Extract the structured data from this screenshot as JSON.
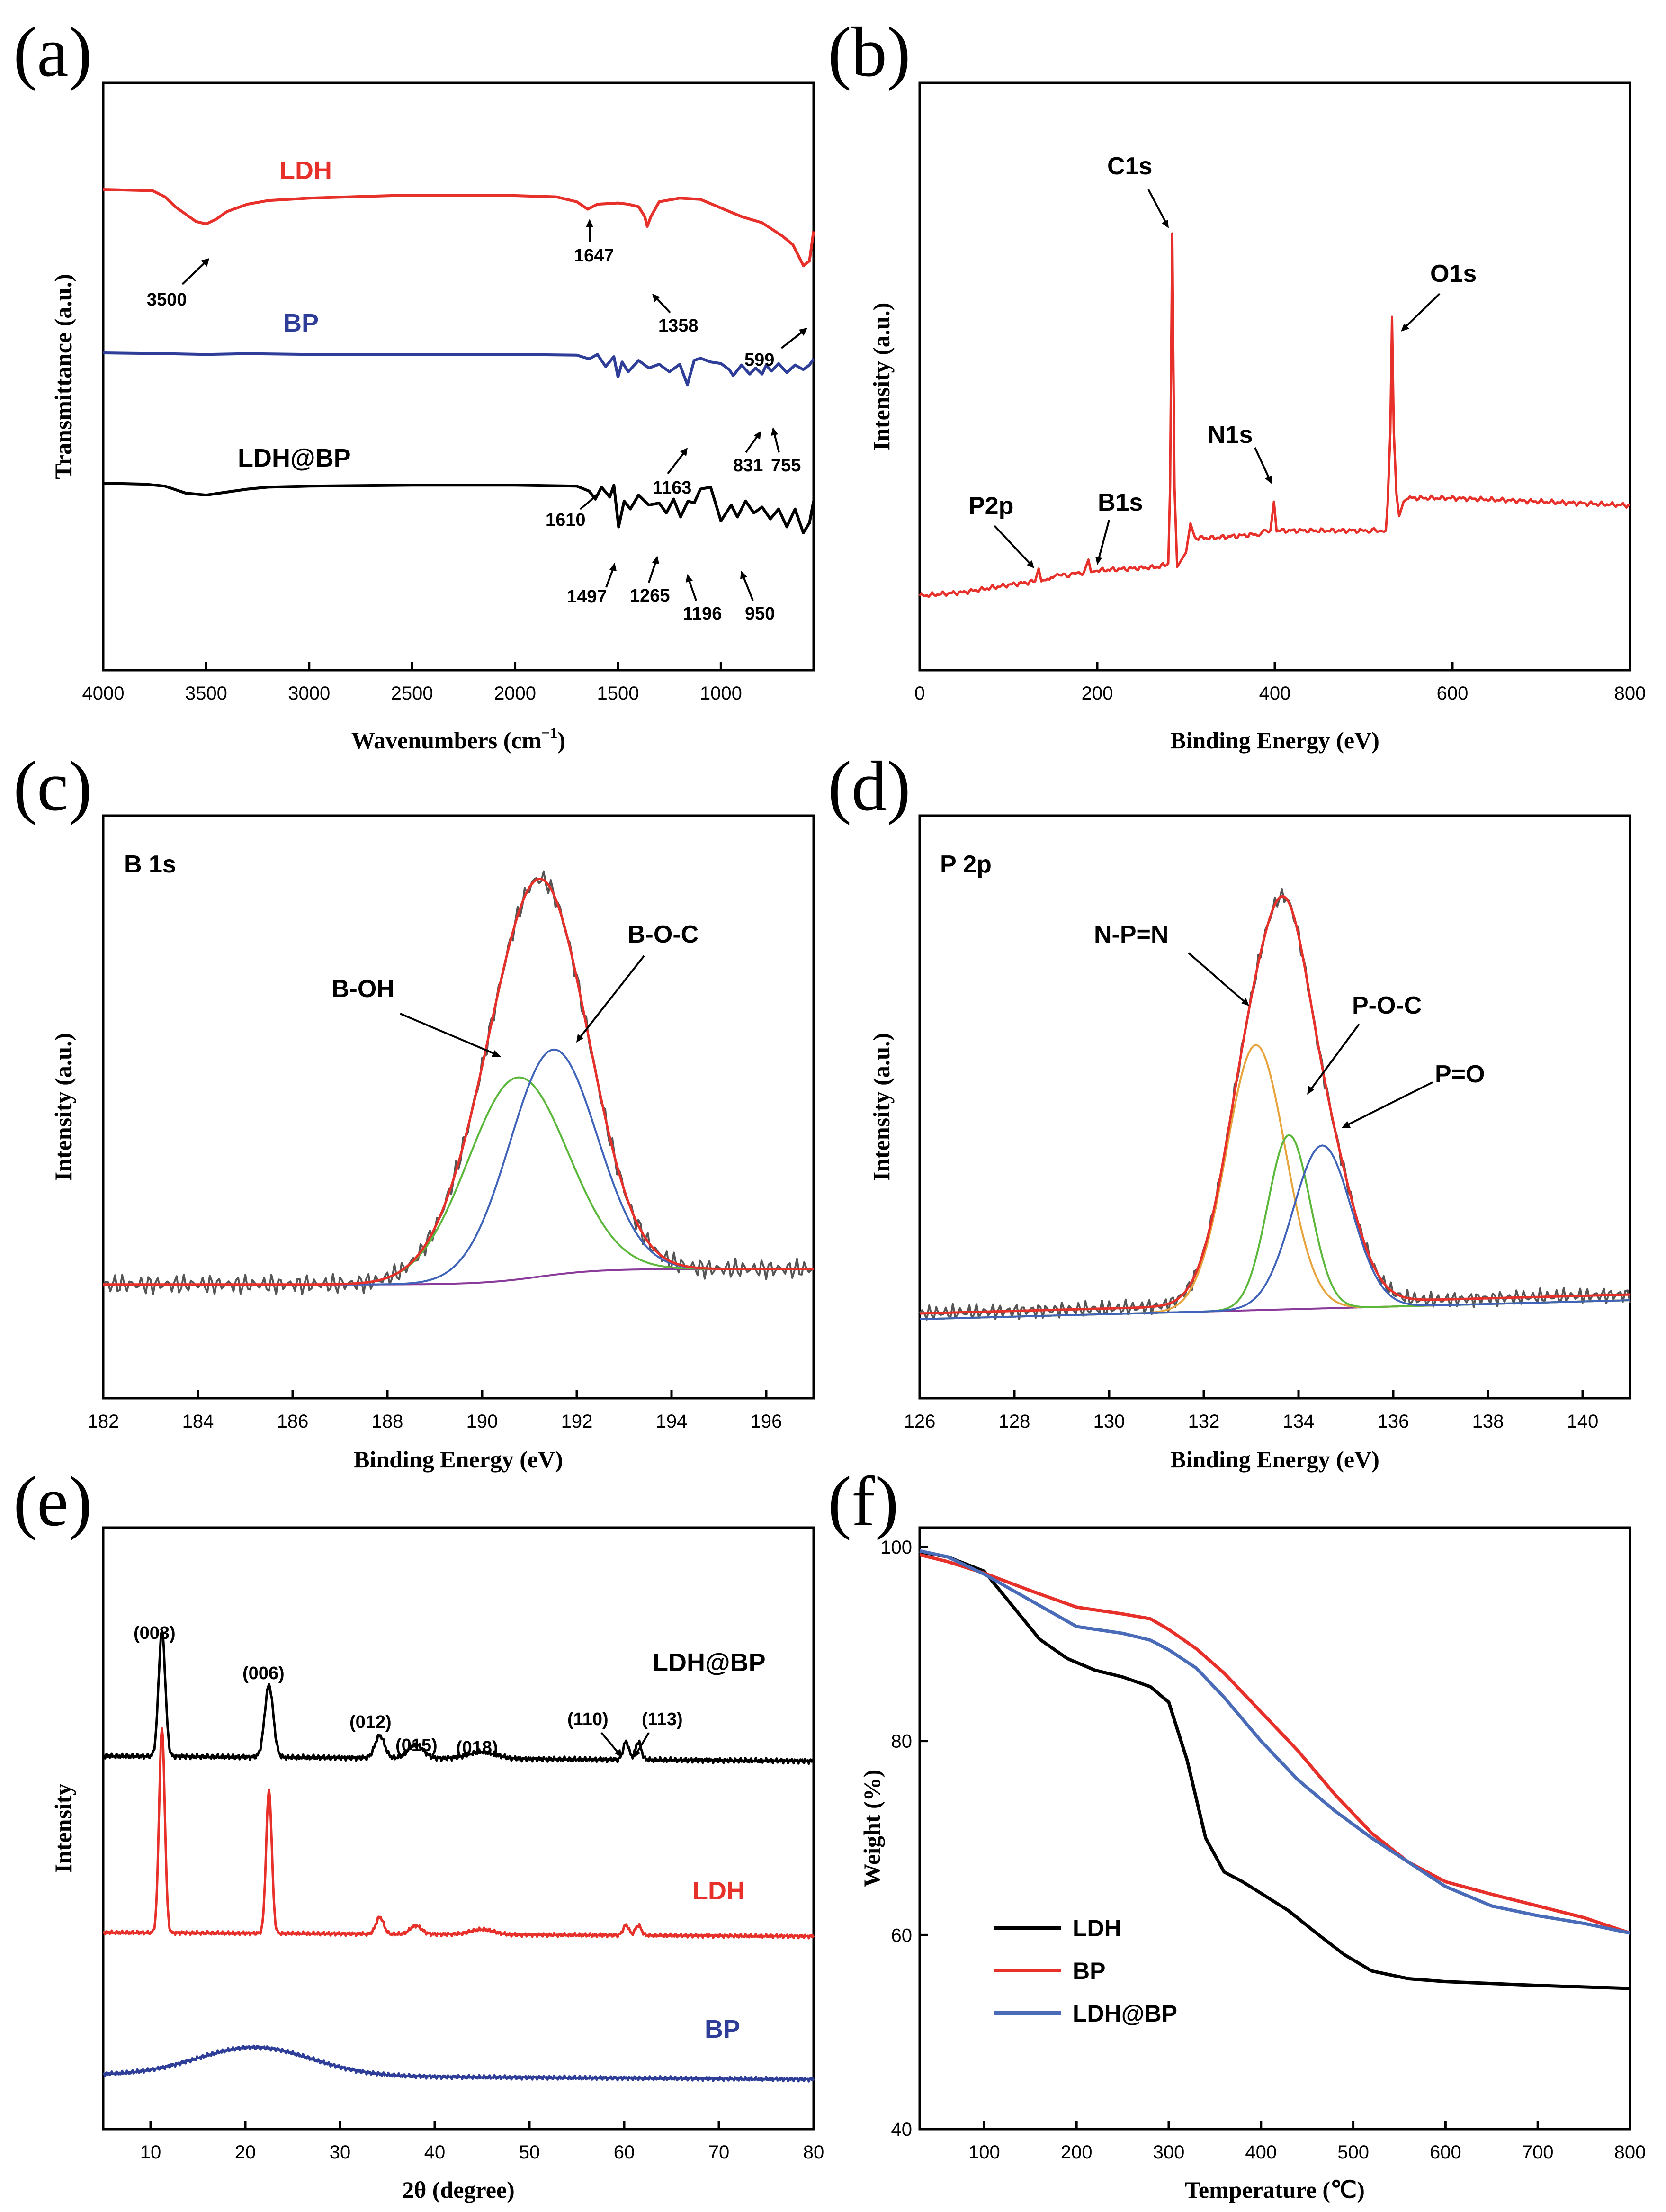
{
  "colors": {
    "red": "#e8302a",
    "blue": "#2e3d98",
    "black": "#000000",
    "green": "#5cb83a",
    "peakblue": "#3f63b8",
    "orange": "#e8a43c",
    "purple": "#8a3a99",
    "raw": "#555555",
    "tgaBlue": "#4a6bb8"
  },
  "chart_data": [
    {
      "panel": "(a)",
      "type": "line",
      "xlabel": "Wavenumbers (cm",
      "xlabel_sup": "−1",
      "xlabel_end": ")",
      "ylabel": "Transmittance (a.u.)",
      "xlim": [
        4000,
        550
      ],
      "xticks": [
        4000,
        3500,
        3000,
        2500,
        2000,
        1500,
        1000
      ],
      "series": [
        {
          "name": "LDH",
          "color": "red",
          "x": [
            4000,
            3760,
            3700,
            3650,
            3600,
            3550,
            3500,
            3450,
            3400,
            3300,
            3200,
            3000,
            2800,
            2600,
            2400,
            2200,
            2000,
            1800,
            1700,
            1647,
            1600,
            1500,
            1450,
            1400,
            1370,
            1358,
            1340,
            1300,
            1200,
            1100,
            1000,
            900,
            800,
            700,
            650,
            620,
            599,
            570,
            550
          ],
          "y": [
            100,
            99,
            94,
            86,
            80,
            74,
            72,
            76,
            82,
            88,
            91,
            93,
            94,
            95,
            95,
            95,
            95,
            94,
            90,
            84,
            88,
            89,
            88,
            86,
            78,
            70,
            78,
            90,
            93,
            92,
            85,
            78,
            73,
            62,
            55,
            45,
            38,
            42,
            66
          ]
        },
        {
          "name": "BP",
          "color": "blue",
          "x": [
            4000,
            3700,
            3500,
            3300,
            3000,
            2500,
            2000,
            1700,
            1640,
            1600,
            1560,
            1520,
            1500,
            1480,
            1450,
            1400,
            1350,
            1300,
            1250,
            1200,
            1163,
            1130,
            1100,
            1050,
            1000,
            960,
            940,
            900,
            860,
            831,
            800,
            780,
            755,
            720,
            680,
            640,
            600,
            570,
            550
          ],
          "y": [
            100,
            99,
            98,
            99,
            98,
            98,
            98,
            97,
            92,
            98,
            82,
            95,
            68,
            88,
            75,
            90,
            80,
            85,
            75,
            85,
            58,
            90,
            93,
            88,
            86,
            78,
            70,
            84,
            72,
            80,
            72,
            84,
            76,
            86,
            74,
            84,
            78,
            84,
            92
          ]
        },
        {
          "name": "LDH@BP",
          "color": "black",
          "x": [
            4000,
            3800,
            3700,
            3600,
            3500,
            3400,
            3300,
            3200,
            3000,
            2500,
            2000,
            1700,
            1640,
            1610,
            1580,
            1540,
            1520,
            1497,
            1470,
            1440,
            1400,
            1350,
            1300,
            1265,
            1230,
            1196,
            1160,
            1130,
            1100,
            1050,
            1000,
            950,
            920,
            880,
            840,
            800,
            760,
            720,
            680,
            640,
            600,
            570,
            550
          ],
          "y": [
            100,
            99,
            97,
            90,
            88,
            91,
            94,
            96,
            97,
            98,
            98,
            97,
            92,
            84,
            96,
            86,
            98,
            56,
            82,
            74,
            88,
            78,
            80,
            70,
            84,
            66,
            82,
            80,
            94,
            96,
            62,
            78,
            66,
            82,
            70,
            76,
            64,
            74,
            56,
            74,
            50,
            60,
            82
          ]
        }
      ],
      "peak_labels": [
        {
          "text": "3500",
          "series": "LDH"
        },
        {
          "text": "1647",
          "series": "LDH"
        },
        {
          "text": "1358",
          "series": "LDH"
        },
        {
          "text": "599",
          "series": "LDH"
        },
        {
          "text": "1163",
          "series": "BP"
        },
        {
          "text": "831",
          "series": "BP"
        },
        {
          "text": "755",
          "series": "BP"
        },
        {
          "text": "1610",
          "series": "LDH@BP"
        },
        {
          "text": "1497",
          "series": "LDH@BP"
        },
        {
          "text": "1265",
          "series": "LDH@BP"
        },
        {
          "text": "1196",
          "series": "LDH@BP"
        },
        {
          "text": "950",
          "series": "LDH@BP"
        }
      ]
    },
    {
      "panel": "(b)",
      "type": "line",
      "xlabel": "Binding Energy (eV)",
      "ylabel": "Intensity (a.u.)",
      "xlim": [
        0,
        800
      ],
      "xticks": [
        0,
        200,
        400,
        600,
        800
      ],
      "series": [
        {
          "name": "XPS survey",
          "color": "red",
          "x": [
            0,
            50,
            100,
            130,
            134,
            137,
            140,
            150,
            155,
            160,
            185,
            190,
            193,
            200,
            270,
            280,
            282,
            284.5,
            287,
            290,
            295,
            300,
            305,
            310,
            330,
            380,
            395,
            399,
            402,
            410,
            450,
            500,
            525,
            527,
            530,
            532,
            534,
            537,
            540,
            545,
            550,
            560,
            600,
            700,
            800
          ],
          "y": [
            0,
            1,
            3,
            4,
            7.5,
            4,
            4.5,
            5,
            6,
            5.5,
            6.5,
            10,
            6.5,
            7,
            8,
            9,
            30,
            100,
            30,
            8,
            10,
            12,
            20,
            16,
            16,
            17,
            18,
            26,
            18,
            18,
            18,
            18,
            18,
            25,
            45,
            77,
            45,
            28,
            22,
            26,
            27,
            27,
            27,
            26,
            25
          ]
        }
      ],
      "peak_labels": [
        {
          "text": "C1s"
        },
        {
          "text": "O1s"
        },
        {
          "text": "N1s"
        },
        {
          "text": "B1s"
        },
        {
          "text": "P2p"
        }
      ]
    },
    {
      "panel": "(c)",
      "type": "line",
      "title": "B 1s",
      "xlabel": "Binding Energy (eV)",
      "ylabel": "Intensity (a.u.)",
      "xlim": [
        182,
        197
      ],
      "xticks": [
        182,
        184,
        186,
        188,
        190,
        192,
        194,
        196
      ],
      "components": [
        {
          "name": "B-OH",
          "center": 190.75,
          "sigma": 1.05,
          "amp": 52
        },
        {
          "name": "B-O-C",
          "center": 191.5,
          "sigma": 0.92,
          "amp": 58
        }
      ]
    },
    {
      "panel": "(d)",
      "type": "line",
      "title": "P 2p",
      "xlabel": "Binding Energy (eV)",
      "ylabel": "Intensity (a.u.)",
      "xlim": [
        126,
        141
      ],
      "xticks": [
        126,
        128,
        130,
        132,
        134,
        136,
        138,
        140
      ],
      "components": [
        {
          "name": "N-P=N",
          "center": 133.1,
          "sigma": 0.62,
          "amp": 70
        },
        {
          "name": "P-O-C",
          "center": 133.8,
          "sigma": 0.45,
          "amp": 46
        },
        {
          "name": "P=O",
          "center": 134.5,
          "sigma": 0.62,
          "amp": 43
        }
      ]
    },
    {
      "panel": "(e)",
      "type": "line",
      "xlabel": "2θ (degree)",
      "ylabel": "Intensity",
      "xlim": [
        5,
        80
      ],
      "xticks": [
        10,
        20,
        30,
        40,
        50,
        60,
        70,
        80
      ],
      "series": [
        {
          "name": "LDH@BP",
          "color": "black",
          "peaks": [
            [
              11.2,
              28,
              0.35
            ],
            [
              22.5,
              16,
              0.45
            ],
            [
              34.2,
              5,
              0.5
            ],
            [
              38,
              3,
              0.8
            ],
            [
              45,
              1.5,
              1.5
            ],
            [
              60.2,
              4,
              0.3
            ],
            [
              61.5,
              4,
              0.3
            ]
          ]
        },
        {
          "name": "LDH",
          "color": "red",
          "peaks": [
            [
              11.2,
              60,
              0.3
            ],
            [
              22.5,
              42,
              0.3
            ],
            [
              34.2,
              5,
              0.4
            ],
            [
              38,
              2.5,
              0.6
            ],
            [
              45,
              1.5,
              1.2
            ],
            [
              60.2,
              3,
              0.3
            ],
            [
              61.5,
              3,
              0.3
            ]
          ]
        },
        {
          "name": "BP",
          "color": "blue",
          "peaks": [
            [
              21,
              8,
              6
            ]
          ]
        }
      ],
      "peak_labels": [
        {
          "text": "(003)"
        },
        {
          "text": "(006)"
        },
        {
          "text": "(012)"
        },
        {
          "text": "(015)"
        },
        {
          "text": "(018)"
        },
        {
          "text": "(110)"
        },
        {
          "text": "(113)"
        }
      ]
    },
    {
      "panel": "(f)",
      "type": "line",
      "xlabel": "Temperature (°C)",
      "ylabel": "Weight (%)",
      "xlim": [
        30,
        800
      ],
      "ylim": [
        40,
        102
      ],
      "xticks": [
        100,
        200,
        300,
        400,
        500,
        600,
        700,
        800
      ],
      "yticks": [
        40,
        60,
        80,
        100
      ],
      "series": [
        {
          "name": "LDH",
          "color": "black",
          "x": [
            30,
            60,
            100,
            130,
            160,
            190,
            220,
            250,
            280,
            300,
            320,
            340,
            360,
            380,
            400,
            430,
            460,
            490,
            520,
            560,
            600,
            700,
            800
          ],
          "y": [
            99.5,
            99,
            97.5,
            94,
            90.5,
            88.5,
            87.3,
            86.6,
            85.6,
            84,
            78,
            70,
            66.5,
            65.5,
            64.3,
            62.5,
            60.2,
            58,
            56.3,
            55.5,
            55.2,
            54.8,
            54.5
          ]
        },
        {
          "name": "BP",
          "color": "red",
          "x": [
            30,
            60,
            100,
            150,
            200,
            250,
            280,
            300,
            330,
            360,
            400,
            440,
            480,
            520,
            560,
            600,
            650,
            700,
            750,
            800
          ],
          "y": [
            99.2,
            98.5,
            97.3,
            95.5,
            93.8,
            93.1,
            92.6,
            91.5,
            89.5,
            87,
            83,
            79,
            74.5,
            70.5,
            67.5,
            65.5,
            64.2,
            63,
            61.8,
            60.2
          ]
        },
        {
          "name": "LDH@BP",
          "color": "tgaBlue",
          "x": [
            30,
            60,
            100,
            150,
            200,
            250,
            280,
            300,
            330,
            360,
            400,
            440,
            480,
            520,
            560,
            600,
            650,
            700,
            750,
            800
          ],
          "y": [
            99.6,
            99,
            97.2,
            94.5,
            91.8,
            91.1,
            90.4,
            89.4,
            87.5,
            84.5,
            80,
            76,
            72.8,
            70,
            67.5,
            65,
            63,
            62,
            61.2,
            60.2
          ]
        }
      ],
      "legend": [
        "LDH",
        "BP",
        "LDH@BP"
      ]
    }
  ],
  "panels": {
    "a": {
      "letter": "(a)",
      "xlabel": "Wavenumbers (cm",
      "xlabel_sup": "−1",
      "xlabel_end": ")",
      "ylabel": "Transmittance (a.u.)",
      "series_labels": [
        "LDH",
        "BP",
        "LDH@BP"
      ],
      "peaks": [
        "3500",
        "1647",
        "1358",
        "599",
        "1163",
        "831",
        "755",
        "1610",
        "1497",
        "1265",
        "1196",
        "950"
      ],
      "ticks": [
        "4000",
        "3500",
        "3000",
        "2500",
        "2000",
        "1500",
        "1000"
      ]
    },
    "b": {
      "letter": "(b)",
      "xlabel": "Binding Energy (eV)",
      "ylabel": "Intensity (a.u.)",
      "peaks": [
        "C1s",
        "O1s",
        "N1s",
        "B1s",
        "P2p"
      ],
      "ticks": [
        "0",
        "200",
        "400",
        "600",
        "800"
      ]
    },
    "c": {
      "letter": "(c)",
      "title": "B 1s",
      "xlabel": "Binding Energy (eV)",
      "ylabel": "Intensity (a.u.)",
      "peaks": [
        "B-OH",
        "B-O-C"
      ],
      "ticks": [
        "182",
        "184",
        "186",
        "188",
        "190",
        "192",
        "194",
        "196"
      ]
    },
    "d": {
      "letter": "(d)",
      "title": "P 2p",
      "xlabel": "Binding Energy (eV)",
      "ylabel": "Intensity (a.u.)",
      "peaks": [
        "N-P=N",
        "P-O-C",
        "P=O"
      ],
      "ticks": [
        "126",
        "128",
        "130",
        "132",
        "134",
        "136",
        "138",
        "140"
      ]
    },
    "e": {
      "letter": "(e)",
      "xlabel": "2θ (degree)",
      "ylabel": "Intensity",
      "series_labels": [
        "LDH@BP",
        "LDH",
        "BP"
      ],
      "peaks": [
        "(003)",
        "(006)",
        "(012)",
        "(015)",
        "(018)",
        "(110)",
        "(113)"
      ],
      "ticks": [
        "10",
        "20",
        "30",
        "40",
        "50",
        "60",
        "70",
        "80"
      ]
    },
    "f": {
      "letter": "(f)",
      "xlabel": "Temperature (℃)",
      "ylabel": "Weight (%)",
      "legend": [
        "LDH",
        "BP",
        "LDH@BP"
      ],
      "xticks": [
        "100",
        "200",
        "300",
        "400",
        "500",
        "600",
        "700",
        "800"
      ],
      "yticks": [
        "40",
        "60",
        "80",
        "100"
      ]
    }
  }
}
